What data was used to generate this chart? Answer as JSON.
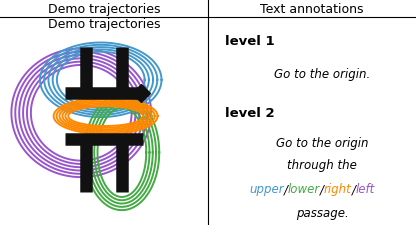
{
  "title_left": "Demo trajectories",
  "title_right": "Text annotations",
  "level1_label": "level 1",
  "level1_text": "Go to the origin.",
  "level2_label": "level 2",
  "level2_line1": "Go to the origin",
  "level2_line2": "through the",
  "level2_line4": "passage.",
  "colored_words": [
    "upper",
    "lower",
    "right",
    "left"
  ],
  "colored_colors": [
    "#4499cc",
    "#44aa44",
    "#ff8800",
    "#9955cc"
  ],
  "cross_color": "#111111",
  "blue_color": "#4499cc",
  "orange_color": "#ff8800",
  "green_color": "#44aa44",
  "purple_color": "#9955cc",
  "diamond_color": "#111111",
  "bg_color": "#ffffff",
  "lw_traj": 1.4
}
